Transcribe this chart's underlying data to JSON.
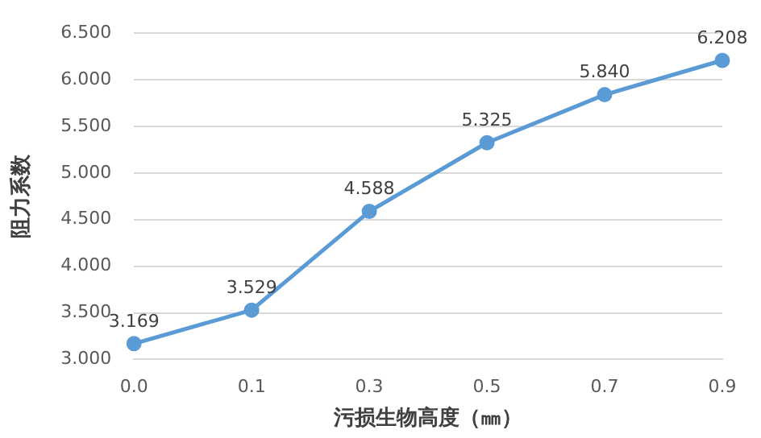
{
  "chart_data": {
    "type": "line",
    "xlabel": "污损生物高度（㎜）",
    "ylabel": "阻力系数",
    "categories": [
      "0.0",
      "0.1",
      "0.3",
      "0.5",
      "0.7",
      "0.9"
    ],
    "series": [
      {
        "color": "#5b9bd5",
        "values": [
          3.169,
          3.529,
          4.588,
          5.325,
          5.84,
          6.208
        ],
        "value_labels": [
          "3.169",
          "3.529",
          "4.588",
          "5.325",
          "5.840",
          "6.208"
        ]
      }
    ],
    "ylim": [
      3,
      6.5
    ],
    "yticks": [
      {
        "value": 3,
        "label": "3.000"
      },
      {
        "value": 3.5,
        "label": "3.500"
      },
      {
        "value": 4,
        "label": "4.000"
      },
      {
        "value": 4.5,
        "label": "4.500"
      },
      {
        "value": 5,
        "label": "5.000"
      },
      {
        "value": 5.5,
        "label": "5.500"
      },
      {
        "value": 6,
        "label": "6.000"
      },
      {
        "value": 6.5,
        "label": "6.500"
      }
    ],
    "grid": "y",
    "legend": false,
    "marker": "circle",
    "line_style": "solid"
  }
}
